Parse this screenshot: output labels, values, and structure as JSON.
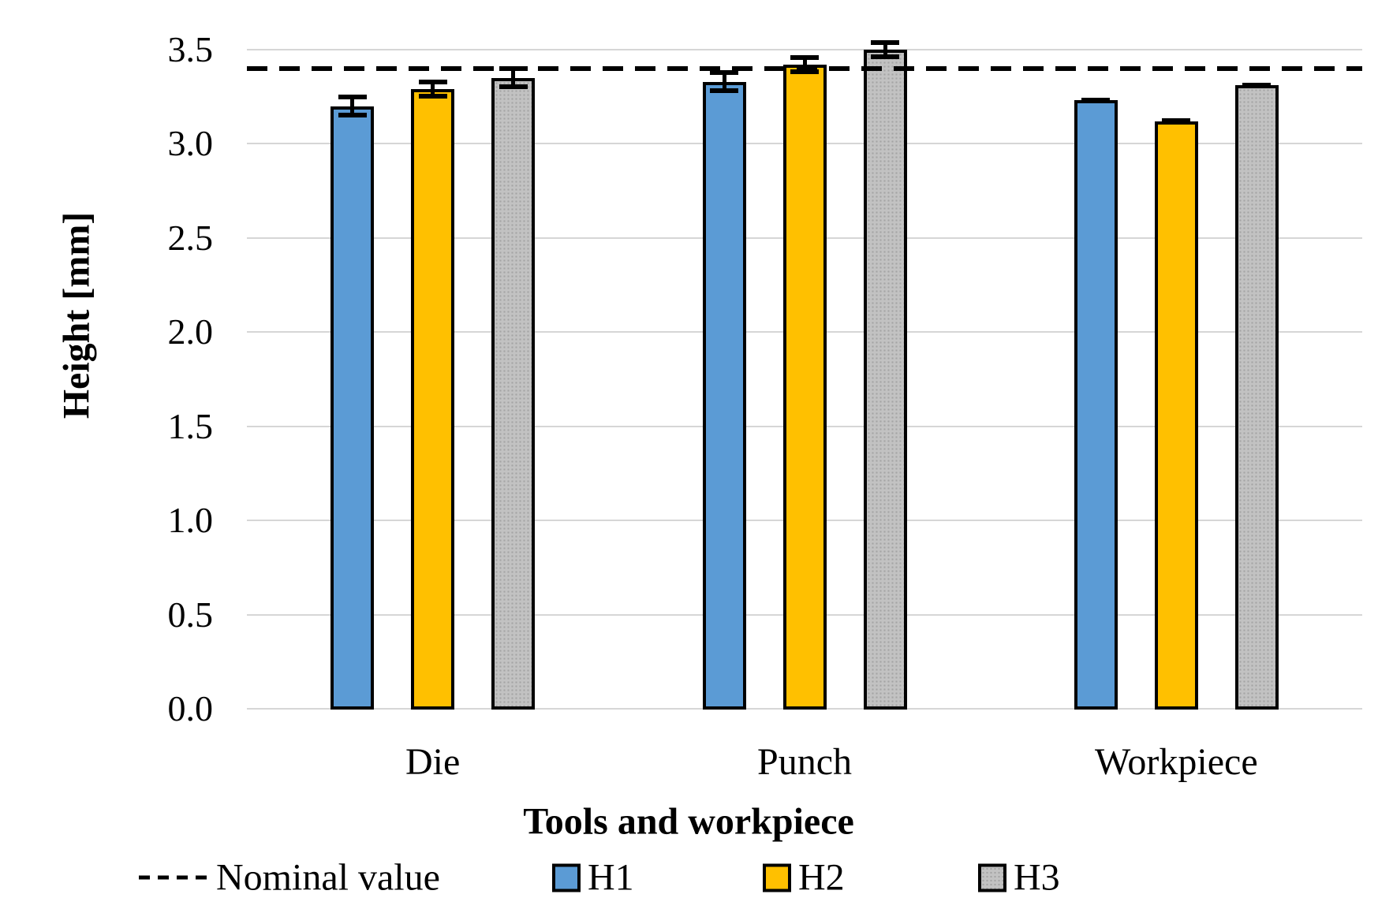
{
  "chart_data": {
    "type": "bar",
    "title": "",
    "xlabel": "Tools and workpiece",
    "ylabel": "Height [mm]",
    "categories": [
      "Die",
      "Punch",
      "Workpiece"
    ],
    "series": [
      {
        "name": "H1",
        "color": "#5B9BD5",
        "pattern": false,
        "values": [
          3.2,
          3.33,
          3.23
        ],
        "errors": [
          0.06,
          0.06,
          0.01
        ]
      },
      {
        "name": "H2",
        "color": "#FFC000",
        "pattern": false,
        "values": [
          3.29,
          3.42,
          3.12
        ],
        "errors": [
          0.05,
          0.05,
          0.01
        ]
      },
      {
        "name": "H3",
        "color": "#C2C2C2",
        "pattern": true,
        "values": [
          3.35,
          3.5,
          3.31
        ],
        "errors": [
          0.06,
          0.05,
          0.01
        ]
      }
    ],
    "nominal_line": {
      "label": "Nominal value",
      "value": 3.4,
      "style": "dashed",
      "color": "#000000"
    },
    "yticks": [
      0.0,
      0.5,
      1.0,
      1.5,
      2.0,
      2.5,
      3.0,
      3.5
    ],
    "ylim": [
      0,
      3.6
    ],
    "grid": true,
    "gridline_color": "#d6d6d6",
    "bar_outline_color": "#000000",
    "legend_position": "bottom"
  }
}
